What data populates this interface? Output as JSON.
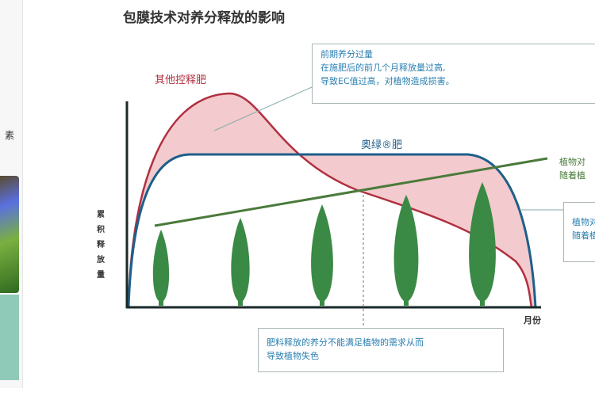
{
  "title": "包膜技术对养分释放的影响",
  "y_label": "累积释放量",
  "x_label": "月份",
  "series_labels": {
    "other": "其他控释肥",
    "osmocote": "奥绿®肥"
  },
  "callout_top": {
    "heading": "前期养分过量",
    "line1": "在施肥后的前几个月释放量过高,",
    "line2": "导致EC值过高，对植物造成损害。"
  },
  "callout_bottom": {
    "line1": "肥料释放的养分不能满足植物的需求从而",
    "line2": "导致植物失色"
  },
  "callout_right_partial": {
    "line1": "植物对",
    "line2": "随着植"
  },
  "left_panel_partial_text": "素",
  "colors": {
    "other": "#b03040",
    "osmocote": "#1e5f8a",
    "demand": "#4a7a3a",
    "tree": "#3a8a45",
    "fill": "#f2c4c8",
    "callout_text": "#2a7fb0"
  }
}
